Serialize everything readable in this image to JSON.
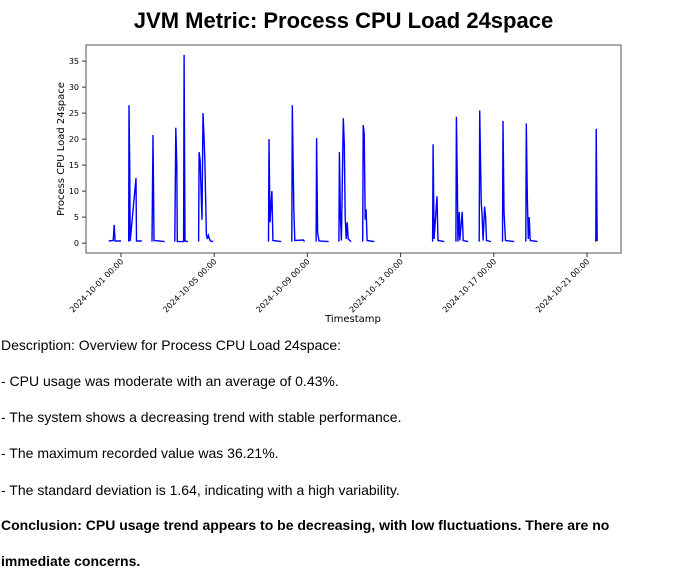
{
  "chart_data": {
    "type": "line",
    "title": "JVM Metric: Process CPU Load 24space",
    "xlabel": "Timestamp",
    "ylabel": "Process CPU Load 24space",
    "xlim": [
      "2024-09-29 12:00",
      "2024-10-22 11:00"
    ],
    "ylim": [
      -1.9,
      38.1
    ],
    "xticks": [
      "2024-10-01 00:00",
      "2024-10-05 00:00",
      "2024-10-09 00:00",
      "2024-10-13 00:00",
      "2024-10-17 00:00",
      "2024-10-21 00:00"
    ],
    "yticks": [
      0,
      5,
      10,
      15,
      20,
      25,
      30,
      35
    ],
    "grid": false,
    "line_color": "#0000ff",
    "segments": [
      [
        [
          "2024-09-30 11:30",
          0.4
        ],
        [
          "2024-09-30 16:00",
          0.5
        ],
        [
          "2024-09-30 17:00",
          3.5
        ],
        [
          "2024-09-30 18:00",
          0.4
        ],
        [
          "2024-10-01 00:00",
          0.4
        ]
      ],
      [
        [
          "2024-10-01 08:00",
          0.3
        ],
        [
          "2024-10-01 08:15",
          26.5
        ],
        [
          "2024-10-01 09:00",
          15
        ],
        [
          "2024-10-01 09:30",
          0.4
        ],
        [
          "2024-10-01 15:30",
          12.5
        ],
        [
          "2024-10-01 16:00",
          0.4
        ],
        [
          "2024-10-01 21:30",
          0.4
        ]
      ],
      [
        [
          "2024-10-02 08:00",
          0.3
        ],
        [
          "2024-10-02 09:00",
          20.8
        ],
        [
          "2024-10-02 10:00",
          0.5
        ],
        [
          "2024-10-02 21:00",
          0.3
        ]
      ],
      [
        [
          "2024-10-03 07:30",
          0.3
        ],
        [
          "2024-10-03 08:30",
          22.2
        ],
        [
          "2024-10-03 09:30",
          15
        ],
        [
          "2024-10-03 10:00",
          0.3
        ],
        [
          "2024-10-03 16:30",
          0.3
        ],
        [
          "2024-10-03 17:00",
          36.2
        ],
        [
          "2024-10-03 18:00",
          0.4
        ],
        [
          "2024-10-03 21:00",
          0.3
        ]
      ],
      [
        [
          "2024-10-04 08:00",
          0.3
        ],
        [
          "2024-10-04 08:30",
          17.5
        ],
        [
          "2024-10-04 09:30",
          16
        ],
        [
          "2024-10-04 11:30",
          4.5
        ],
        [
          "2024-10-04 12:30",
          25
        ],
        [
          "2024-10-04 13:30",
          20.5
        ],
        [
          "2024-10-04 14:30",
          15.5
        ],
        [
          "2024-10-04 16:00",
          1.5
        ],
        [
          "2024-10-04 17:00",
          0.8
        ],
        [
          "2024-10-04 18:00",
          1.5
        ],
        [
          "2024-10-04 20:00",
          0.4
        ],
        [
          "2024-10-04 23:00",
          0.3
        ]
      ],
      [
        [
          "2024-10-07 08:00",
          0.3
        ],
        [
          "2024-10-07 08:30",
          20
        ],
        [
          "2024-10-07 09:30",
          4
        ],
        [
          "2024-10-07 11:30",
          10
        ],
        [
          "2024-10-07 12:30",
          0.5
        ],
        [
          "2024-10-07 21:00",
          0.3
        ]
      ],
      [
        [
          "2024-10-08 08:00",
          0.3
        ],
        [
          "2024-10-08 08:30",
          26.5
        ],
        [
          "2024-10-08 10:00",
          6.5
        ],
        [
          "2024-10-08 11:00",
          0.5
        ],
        [
          "2024-10-08 20:00",
          0.6
        ],
        [
          "2024-10-08 21:00",
          0.3
        ]
      ],
      [
        [
          "2024-10-09 09:00",
          0.3
        ],
        [
          "2024-10-09 09:30",
          20.2
        ],
        [
          "2024-10-09 10:30",
          2
        ],
        [
          "2024-10-09 12:00",
          0.4
        ],
        [
          "2024-10-09 22:00",
          0.3
        ]
      ],
      [
        [
          "2024-10-10 08:30",
          0.3
        ],
        [
          "2024-10-10 09:00",
          17.5
        ],
        [
          "2024-10-10 10:00",
          5
        ],
        [
          "2024-10-10 11:00",
          0.5
        ],
        [
          "2024-10-10 13:00",
          24
        ],
        [
          "2024-10-10 14:00",
          19
        ],
        [
          "2024-10-10 15:00",
          5
        ],
        [
          "2024-10-10 16:00",
          0.8
        ],
        [
          "2024-10-10 17:00",
          4
        ],
        [
          "2024-10-10 18:00",
          0.8
        ],
        [
          "2024-10-10 21:00",
          0.3
        ]
      ],
      [
        [
          "2024-10-11 09:00",
          0.3
        ],
        [
          "2024-10-11 09:30",
          22.7
        ],
        [
          "2024-10-11 10:30",
          21
        ],
        [
          "2024-10-11 11:30",
          4.5
        ],
        [
          "2024-10-11 12:30",
          6.5
        ],
        [
          "2024-10-11 13:30",
          0.5
        ],
        [
          "2024-10-11 21:00",
          0.3
        ]
      ],
      [
        [
          "2024-10-14 09:00",
          0.3
        ],
        [
          "2024-10-14 09:30",
          19
        ],
        [
          "2024-10-14 10:30",
          0.8
        ],
        [
          "2024-10-14 13:30",
          9
        ],
        [
          "2024-10-14 14:30",
          0.5
        ],
        [
          "2024-10-14 21:00",
          0.3
        ]
      ],
      [
        [
          "2024-10-15 09:00",
          0.3
        ],
        [
          "2024-10-15 09:30",
          24.3
        ],
        [
          "2024-10-15 10:30",
          10.5
        ],
        [
          "2024-10-15 11:00",
          0.3
        ],
        [
          "2024-10-15 12:30",
          6
        ],
        [
          "2024-10-15 13:00",
          0.5
        ],
        [
          "2024-10-15 15:30",
          6
        ],
        [
          "2024-10-15 16:30",
          0.5
        ],
        [
          "2024-10-15 21:30",
          0.3
        ]
      ],
      [
        [
          "2024-10-16 09:00",
          0.3
        ],
        [
          "2024-10-16 09:30",
          25.5
        ],
        [
          "2024-10-16 11:00",
          8
        ],
        [
          "2024-10-16 12:00",
          5
        ],
        [
          "2024-10-16 13:00",
          0.5
        ],
        [
          "2024-10-16 14:30",
          7
        ],
        [
          "2024-10-16 15:30",
          5
        ],
        [
          "2024-10-16 16:30",
          0.5
        ],
        [
          "2024-10-16 21:00",
          0.3
        ]
      ],
      [
        [
          "2024-10-17 09:00",
          0.3
        ],
        [
          "2024-10-17 09:30",
          23.5
        ],
        [
          "2024-10-17 10:30",
          6
        ],
        [
          "2024-10-17 12:00",
          0.5
        ],
        [
          "2024-10-17 21:00",
          0.3
        ]
      ],
      [
        [
          "2024-10-18 09:00",
          0.3
        ],
        [
          "2024-10-18 09:30",
          23
        ],
        [
          "2024-10-18 10:30",
          9
        ],
        [
          "2024-10-18 11:30",
          0.8
        ],
        [
          "2024-10-18 12:30",
          5
        ],
        [
          "2024-10-18 13:30",
          0.5
        ],
        [
          "2024-10-18 21:00",
          0.3
        ]
      ],
      [
        [
          "2024-10-21 09:00",
          0.3
        ],
        [
          "2024-10-21 09:30",
          22
        ],
        [
          "2024-10-21 10:00",
          11
        ],
        [
          "2024-10-21 10:30",
          0.4
        ]
      ]
    ]
  },
  "description": {
    "intro": "Description: Overview for Process CPU Load 24space:",
    "points": [
      "- CPU usage was moderate with an average of 0.43%.",
      "- The system shows a decreasing trend with stable performance.",
      "- The maximum recorded value was 36.21%.",
      "- The standard deviation is 1.64, indicating with a high variability."
    ],
    "conclusion_line1": "Conclusion: CPU usage trend appears to be decreasing, with low fluctuations. There are no",
    "conclusion_line2": "immediate concerns."
  }
}
